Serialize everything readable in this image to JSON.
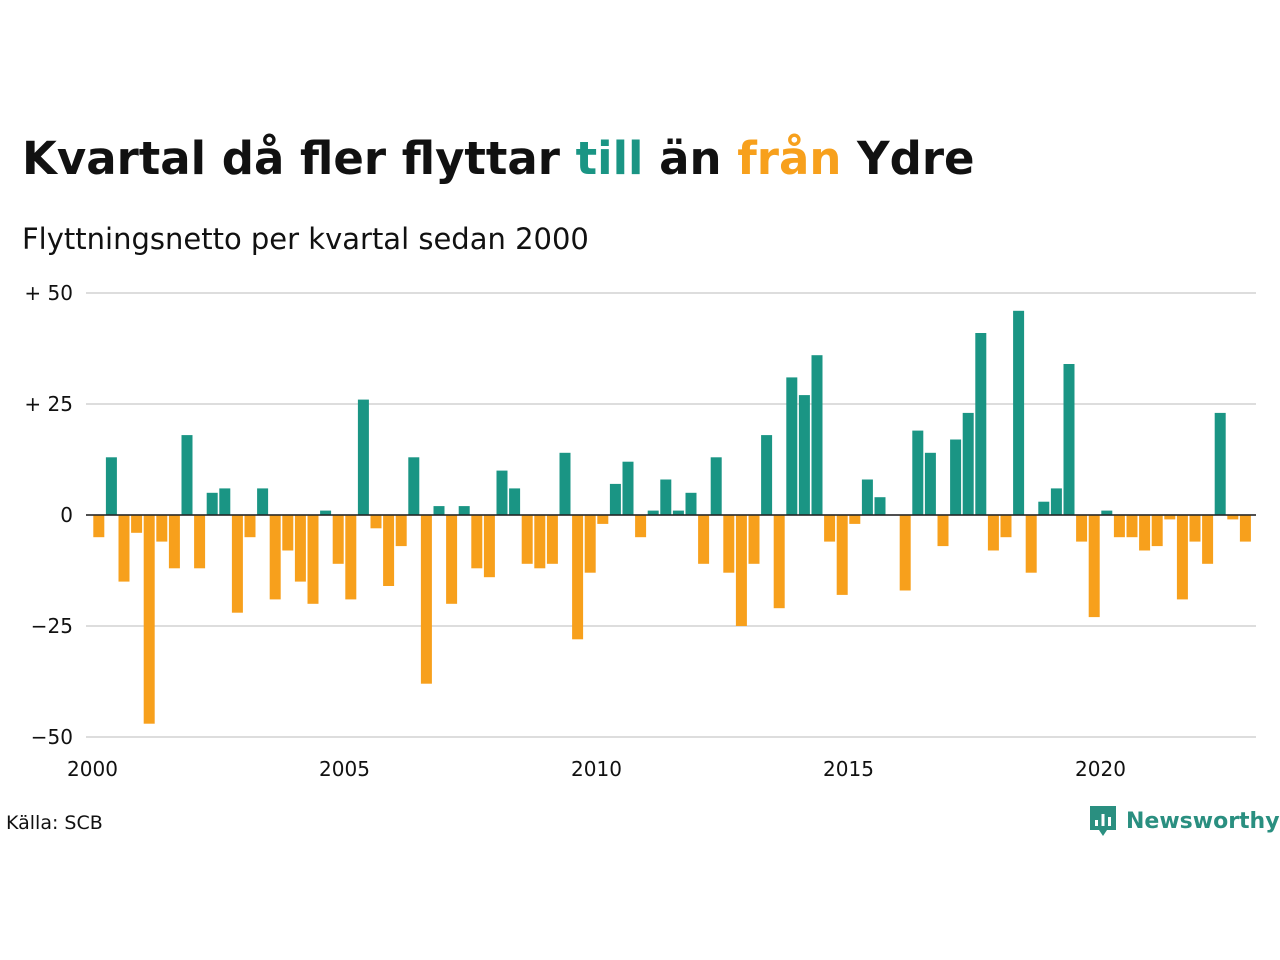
{
  "title": {
    "part1": "Kvartal då fler flyttar ",
    "till": "till",
    "part2": " än ",
    "fran": "från",
    "part3": " Ydre"
  },
  "subtitle": "Flyttningsnetto per kvartal sedan 2000",
  "source": "Källa: SCB",
  "brand": "Newsworthy",
  "colors": {
    "positive": "#1a9584",
    "negative": "#f7a01c",
    "grid": "#dddddd",
    "brand": "#2a8f80"
  },
  "chart_data": {
    "type": "bar",
    "start_year": 2000,
    "ylim": [
      -50,
      50
    ],
    "yticks": [
      50,
      25,
      0,
      -25,
      -50
    ],
    "ytick_labels": [
      "+ 50",
      "+ 25",
      "0",
      "−25",
      "−50"
    ],
    "xticks": [
      2000,
      2005,
      2010,
      2015,
      2020
    ],
    "values": [
      -5,
      13,
      -15,
      -4,
      -47,
      -6,
      -12,
      18,
      -12,
      5,
      6,
      -22,
      -5,
      6,
      -19,
      -8,
      -15,
      -20,
      1,
      -11,
      -19,
      26,
      -3,
      -16,
      -7,
      13,
      -38,
      2,
      -20,
      2,
      -12,
      -14,
      10,
      6,
      -11,
      -12,
      -11,
      14,
      -28,
      -13,
      -2,
      7,
      12,
      -5,
      1,
      8,
      1,
      5,
      -11,
      13,
      -13,
      -25,
      -11,
      18,
      -21,
      31,
      27,
      36,
      -6,
      -18,
      -2,
      8,
      4,
      0,
      -17,
      19,
      14,
      -7,
      17,
      23,
      41,
      -8,
      -5,
      46,
      -13,
      3,
      6,
      34,
      -6,
      -23,
      1,
      -5,
      -5,
      -8,
      -7,
      -1,
      -19,
      -6,
      -11,
      23,
      -1,
      -6
    ]
  }
}
